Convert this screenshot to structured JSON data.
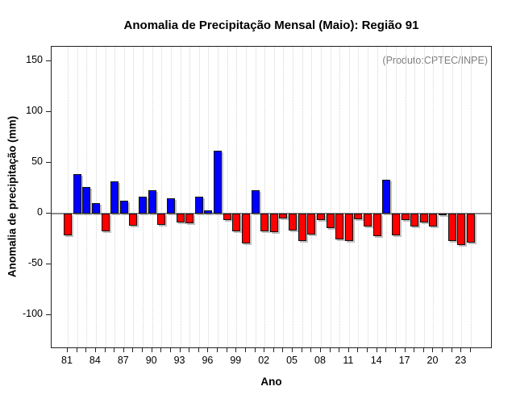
{
  "annotation": "(Produto:CPTEC/INPE)",
  "chart_data": {
    "type": "bar",
    "title": "Anomalia de Precipitação Mensal (Maio): Região 91",
    "xlabel": "Ano",
    "ylabel": "Anomalia de precipitação (mm)",
    "years": [
      1981,
      1982,
      1983,
      1984,
      1985,
      1986,
      1987,
      1988,
      1989,
      1990,
      1991,
      1992,
      1993,
      1994,
      1995,
      1996,
      1997,
      1998,
      1999,
      2000,
      2001,
      2002,
      2003,
      2004,
      2005,
      2006,
      2007,
      2008,
      2009,
      2010,
      2011,
      2012,
      2013,
      2014,
      2015,
      2016,
      2017,
      2018,
      2019,
      2020,
      2021,
      2022,
      2023,
      2024
    ],
    "values": [
      -21,
      39,
      26,
      10,
      -17,
      32,
      13,
      -12,
      17,
      23,
      -11,
      15,
      -9,
      -9.5,
      17,
      3,
      62,
      -6,
      -17,
      -29,
      23,
      -17,
      -18.5,
      -5,
      -16.5,
      -27,
      -20.5,
      -6,
      -14,
      -25,
      -27,
      -5.5,
      -12.5,
      -22.5,
      33,
      -21,
      -6,
      -13,
      -9,
      -12.5,
      -1.5,
      -27,
      -30.5,
      -28.5
    ],
    "x_tick_labels": [
      "81",
      "",
      "",
      "84",
      "",
      "",
      "87",
      "",
      "",
      "90",
      "",
      "",
      "93",
      "",
      "",
      "96",
      "",
      "",
      "99",
      "",
      "",
      "02",
      "",
      "",
      "05",
      "",
      "",
      "08",
      "",
      "",
      "11",
      "",
      "",
      "14",
      "",
      "",
      "17",
      "",
      "",
      "20",
      "",
      "",
      "23",
      "",
      ""
    ],
    "y_ticks": [
      150,
      100,
      50,
      0,
      -50,
      -100
    ],
    "ylim": [
      -133,
      164
    ],
    "grid": "vertical-dotted-per-year",
    "legend": "none",
    "colors": {
      "positive": "#0000ff",
      "negative": "#ff0000",
      "bar_border": "#111111",
      "zero_line": "#8a8a8a",
      "grid": "#d4d4d4",
      "annotation": "#7f7f7f",
      "axis": "#222222"
    }
  }
}
